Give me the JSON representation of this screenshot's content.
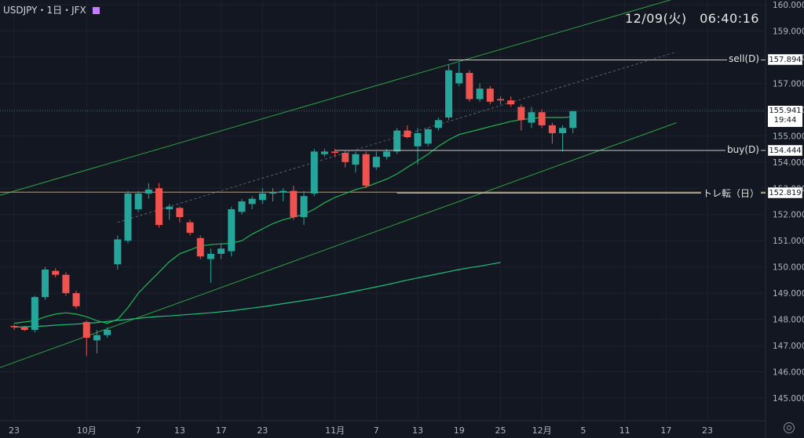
{
  "header": {
    "symbol": "USDJPY・1日・JFX",
    "clock": "12/09(火)　06:40:16"
  },
  "colors": {
    "up": "#26a69a",
    "down": "#ef5350",
    "ma_short": "#1db954",
    "ma_long": "#1ec07a",
    "channel": "#2ea043",
    "hline": "#c8c8c8",
    "orange": "#d19a2a",
    "grid": "#1e2230"
  },
  "chart_data": {
    "type": "candlestick",
    "title": "",
    "xlabel": "",
    "ylabel": "",
    "ylim": [
      144.35,
      160.25
    ],
    "y_ticks": [
      "145.000",
      "146.000",
      "147.000",
      "148.000",
      "149.000",
      "150.000",
      "151.000",
      "152.000",
      "153.000",
      "154.000",
      "155.000",
      "156.000",
      "157.000",
      "158.000",
      "159.000",
      "160.000"
    ],
    "x_ticks": [
      {
        "label": "23",
        "i": 0
      },
      {
        "label": "10月",
        "i": 7
      },
      {
        "label": "7",
        "i": 12
      },
      {
        "label": "13",
        "i": 16
      },
      {
        "label": "17",
        "i": 20
      },
      {
        "label": "23",
        "i": 24
      },
      {
        "label": "11月",
        "i": 31
      },
      {
        "label": "7",
        "i": 35
      },
      {
        "label": "13",
        "i": 39
      },
      {
        "label": "19",
        "i": 43
      },
      {
        "label": "25",
        "i": 47
      },
      {
        "label": "12月",
        "i": 51
      },
      {
        "label": "5",
        "i": 55
      },
      {
        "label": "11",
        "i": 59
      },
      {
        "label": "17",
        "i": 63
      },
      {
        "label": "23",
        "i": 67
      }
    ],
    "ohlc": [
      [
        147.75,
        147.8,
        147.6,
        147.7
      ],
      [
        147.7,
        147.75,
        147.55,
        147.6
      ],
      [
        147.6,
        148.9,
        147.5,
        148.85
      ],
      [
        148.85,
        150.0,
        148.75,
        149.9
      ],
      [
        149.85,
        149.95,
        149.6,
        149.7
      ],
      [
        149.7,
        149.8,
        148.9,
        149.0
      ],
      [
        149.0,
        149.1,
        148.4,
        148.5
      ],
      [
        147.9,
        147.95,
        146.6,
        147.3
      ],
      [
        147.2,
        147.6,
        146.7,
        147.4
      ],
      [
        147.4,
        147.7,
        147.3,
        147.6
      ],
      [
        150.1,
        151.2,
        149.9,
        151.05
      ],
      [
        151.0,
        152.9,
        150.9,
        152.8
      ],
      [
        152.2,
        152.9,
        152.1,
        152.8
      ],
      [
        152.8,
        153.2,
        152.6,
        152.95
      ],
      [
        153.0,
        153.2,
        151.5,
        151.6
      ],
      [
        152.2,
        152.4,
        151.8,
        152.3
      ],
      [
        152.25,
        152.3,
        151.7,
        151.9
      ],
      [
        151.7,
        151.8,
        151.2,
        151.3
      ],
      [
        151.1,
        151.2,
        150.3,
        150.4
      ],
      [
        150.3,
        150.7,
        149.4,
        150.5
      ],
      [
        150.5,
        150.9,
        150.3,
        150.7
      ],
      [
        150.6,
        152.3,
        150.4,
        152.2
      ],
      [
        152.1,
        152.6,
        152.0,
        152.5
      ],
      [
        152.4,
        152.7,
        152.2,
        152.6
      ],
      [
        152.55,
        153.0,
        152.4,
        152.8
      ],
      [
        152.8,
        153.0,
        152.5,
        152.85
      ],
      [
        152.85,
        153.0,
        152.5,
        152.9
      ],
      [
        152.9,
        153.1,
        151.8,
        151.9
      ],
      [
        151.9,
        152.9,
        151.6,
        152.7
      ],
      [
        152.8,
        154.5,
        152.7,
        154.4
      ],
      [
        154.3,
        154.5,
        154.2,
        154.4
      ],
      [
        154.4,
        154.5,
        154.2,
        154.35
      ],
      [
        154.35,
        154.45,
        153.8,
        154.0
      ],
      [
        153.9,
        154.4,
        153.6,
        154.3
      ],
      [
        154.3,
        154.4,
        153.0,
        153.1
      ],
      [
        153.8,
        154.4,
        153.7,
        154.2
      ],
      [
        154.2,
        154.5,
        154.1,
        154.4
      ],
      [
        154.4,
        155.3,
        154.3,
        155.2
      ],
      [
        155.2,
        155.4,
        154.9,
        154.95
      ],
      [
        154.6,
        155.3,
        153.9,
        155.1
      ],
      [
        154.7,
        155.3,
        154.6,
        155.25
      ],
      [
        155.3,
        155.7,
        155.2,
        155.6
      ],
      [
        155.7,
        157.7,
        155.6,
        157.5
      ],
      [
        157.0,
        157.8,
        156.9,
        157.4
      ],
      [
        157.4,
        157.5,
        156.3,
        156.4
      ],
      [
        156.4,
        157.0,
        156.3,
        156.8
      ],
      [
        156.8,
        156.9,
        156.2,
        156.3
      ],
      [
        156.4,
        156.5,
        156.2,
        156.35
      ],
      [
        156.35,
        156.5,
        156.1,
        156.2
      ],
      [
        156.1,
        156.2,
        155.2,
        155.6
      ],
      [
        155.5,
        156.1,
        155.3,
        155.9
      ],
      [
        155.9,
        156.0,
        155.3,
        155.4
      ],
      [
        155.4,
        155.5,
        154.7,
        155.1
      ],
      [
        155.1,
        155.4,
        154.4,
        155.3
      ],
      [
        155.3,
        155.95,
        155.1,
        155.94
      ]
    ],
    "ma_short": [
      147.85,
      147.9,
      147.95,
      148.1,
      148.2,
      148.25,
      148.2,
      148.1,
      147.95,
      147.85,
      148.0,
      148.45,
      149.0,
      149.4,
      149.8,
      150.2,
      150.5,
      150.65,
      150.8,
      150.85,
      150.88,
      150.9,
      151.0,
      151.25,
      151.45,
      151.65,
      151.8,
      151.9,
      152.0,
      152.2,
      152.45,
      152.65,
      152.8,
      152.95,
      153.05,
      153.2,
      153.35,
      153.55,
      153.8,
      154.05,
      154.3,
      154.6,
      154.85,
      155.05,
      155.15,
      155.25,
      155.35,
      155.45,
      155.55,
      155.62,
      155.66,
      155.7,
      155.7,
      155.7,
      155.72
    ],
    "ma_long": [
      147.7,
      147.72,
      147.73,
      147.75,
      147.78,
      147.8,
      147.82,
      147.85,
      147.88,
      147.92,
      147.96,
      148.0,
      148.04,
      148.08,
      148.11,
      148.13,
      148.16,
      148.19,
      148.22,
      148.25,
      148.29,
      148.33,
      148.38,
      148.43,
      148.48,
      148.54,
      148.6,
      148.66,
      148.72,
      148.78,
      148.85,
      148.92,
      149.0,
      149.08,
      149.16,
      149.24,
      149.32,
      149.41,
      149.5,
      149.58,
      149.66,
      149.74,
      149.82,
      149.9,
      149.97,
      150.03,
      150.1,
      150.17
    ],
    "channel_upper": {
      "from": {
        "i": -6,
        "y": 152.2
      },
      "to": {
        "i": 64,
        "y": 160.25
      }
    },
    "channel_lower": {
      "from": {
        "i": -6,
        "y": 145.5
      },
      "to": {
        "i": 64,
        "y": 155.5
      }
    },
    "channel_mid": {
      "from": {
        "i": 10,
        "y": 151.7
      },
      "to": {
        "i": 64,
        "y": 158.2
      }
    },
    "hlines": [
      {
        "label": "sell(D)",
        "value": 157.894,
        "tag": "157.894",
        "from_i": 42
      },
      {
        "label": "buy(D)",
        "value": 154.444,
        "tag": "154.444",
        "from_i": 31
      },
      {
        "label": "トレ転（日）",
        "value": 152.819,
        "tag": "152.819",
        "from_i": 37
      }
    ],
    "orange_line": 152.85,
    "current_price": {
      "value": 155.941,
      "tag": "155.941",
      "time": "19:44"
    }
  }
}
